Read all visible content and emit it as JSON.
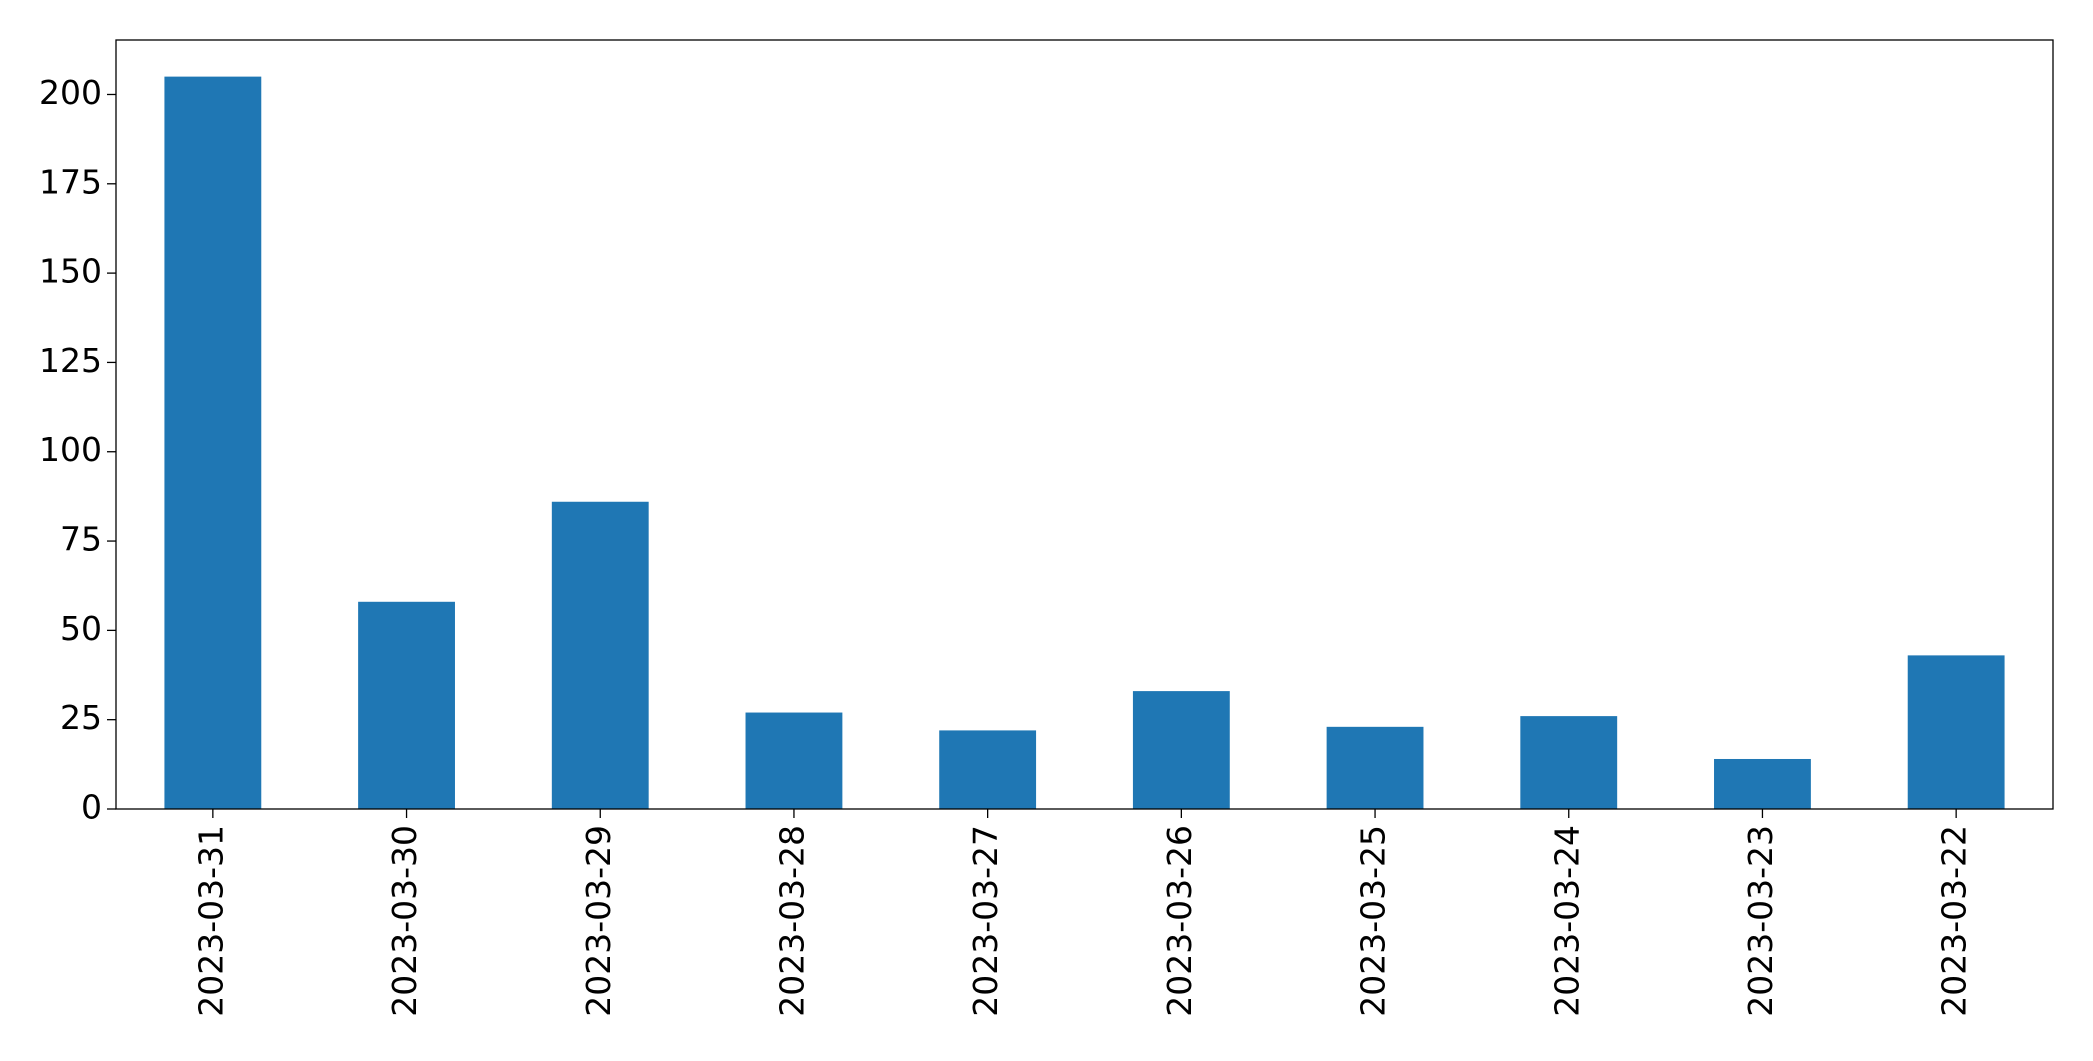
{
  "chart_data": {
    "type": "bar",
    "categories": [
      "2023-03-31",
      "2023-03-30",
      "2023-03-29",
      "2023-03-28",
      "2023-03-27",
      "2023-03-26",
      "2023-03-25",
      "2023-03-24",
      "2023-03-23",
      "2023-03-22"
    ],
    "values": [
      205,
      58,
      86,
      27,
      22,
      33,
      23,
      26,
      14,
      43
    ],
    "color": "#1f77b4",
    "ylim": [
      0,
      215.25
    ],
    "yticks": [
      0,
      25,
      50,
      75,
      100,
      125,
      150,
      175,
      200
    ],
    "grid": false
  }
}
